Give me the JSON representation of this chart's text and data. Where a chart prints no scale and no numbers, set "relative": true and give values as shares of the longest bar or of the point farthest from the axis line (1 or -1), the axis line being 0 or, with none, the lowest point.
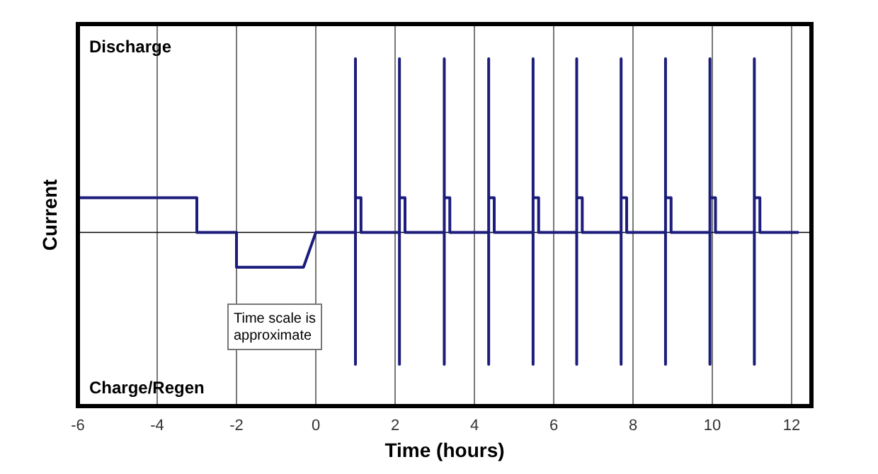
{
  "chart_data": {
    "type": "line",
    "relative": true,
    "xlabel": "Time (hours)",
    "ylabel": "Current",
    "xlim": [
      -6,
      12.5
    ],
    "xticks": [
      -6,
      -4,
      -2,
      0,
      2,
      4,
      6,
      8,
      10,
      12
    ],
    "grid": "x",
    "annotations": [
      "Discharge",
      "Charge/Regen",
      "Time scale is approximate"
    ],
    "series": [
      {
        "color": "#1c1c7c",
        "x": [
          -6,
          -3,
          -3,
          -2,
          -2,
          -0.31,
          0,
          1.0,
          1.0,
          1.0,
          1.0,
          1.14,
          1.14,
          2.11,
          2.11,
          2.11,
          2.11,
          2.25,
          2.25,
          3.24,
          3.24,
          3.24,
          3.24,
          3.38,
          3.38,
          4.36,
          4.36,
          4.36,
          4.36,
          4.5,
          4.5,
          5.48,
          5.48,
          5.48,
          5.48,
          5.62,
          5.62,
          6.58,
          6.58,
          6.58,
          6.58,
          6.72,
          6.72,
          7.7,
          7.7,
          7.7,
          7.7,
          7.84,
          7.84,
          8.82,
          8.82,
          8.82,
          8.82,
          8.96,
          8.96,
          9.94,
          9.94,
          9.94,
          9.94,
          10.08,
          10.08,
          11.06,
          11.06,
          11.06,
          11.06,
          11.2,
          11.2,
          12.18
        ],
        "values": [
          0.2,
          0.2,
          0,
          0,
          -0.2,
          -0.2,
          0,
          0,
          1,
          -0.76,
          0.2,
          0.2,
          0,
          0,
          1,
          -0.76,
          0.2,
          0.2,
          0,
          0,
          1,
          -0.76,
          0.2,
          0.2,
          0,
          0,
          1,
          -0.76,
          0.2,
          0.2,
          0,
          0,
          1,
          -0.76,
          0.2,
          0.2,
          0,
          0,
          1,
          -0.76,
          0.2,
          0.2,
          0,
          0,
          1,
          -0.76,
          0.2,
          0.2,
          0,
          0,
          1,
          -0.76,
          0.2,
          0.2,
          0,
          0,
          1,
          -0.76,
          0.2,
          0.2,
          0,
          0,
          1,
          -0.76,
          0.2,
          0.2,
          0,
          0
        ]
      }
    ]
  }
}
